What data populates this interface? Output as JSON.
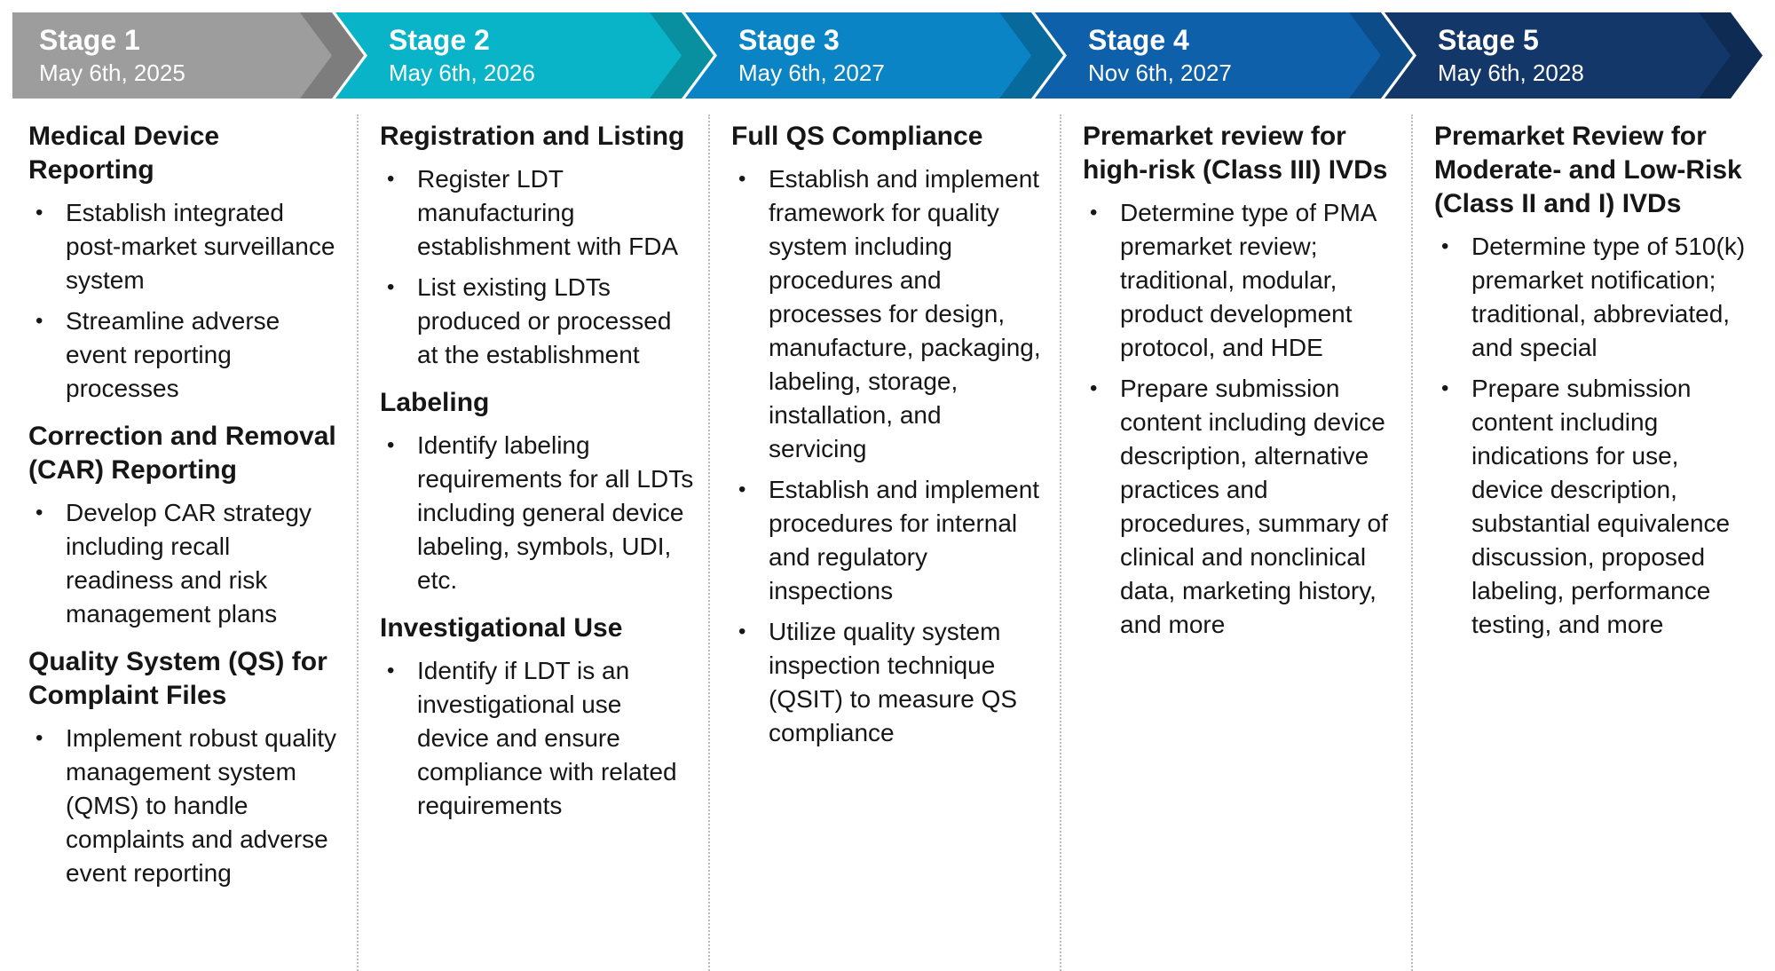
{
  "bullet_char": "•",
  "stages": [
    {
      "label": "Stage 1",
      "date": "May 6th, 2025",
      "color": "#9d9d9d",
      "sections": [
        {
          "heading": "Medical Device Reporting",
          "bullets": [
            "Establish integrated post-market surveillance system",
            "Streamline adverse event reporting processes"
          ]
        },
        {
          "heading": "Correction and Removal (CAR) Reporting",
          "bullets": [
            "Develop CAR strategy including recall readiness and risk management plans"
          ]
        },
        {
          "heading": "Quality System (QS) for Complaint Files",
          "bullets": [
            "Implement robust quality management system (QMS) to handle complaints and adverse event reporting"
          ]
        }
      ]
    },
    {
      "label": "Stage 2",
      "date": "May 6th, 2026",
      "color": "#0ab4c8",
      "sections": [
        {
          "heading": "Registration and Listing",
          "bullets": [
            "Register LDT manufacturing establishment with FDA",
            "List existing LDTs produced or processed at the establishment"
          ]
        },
        {
          "heading": "Labeling",
          "bullets": [
            "Identify labeling requirements for all LDTs including general device labeling, symbols, UDI, etc."
          ]
        },
        {
          "heading": "Investigational Use",
          "bullets": [
            "Identify if LDT is an investigational use device and ensure compliance with related requirements"
          ]
        }
      ]
    },
    {
      "label": "Stage 3",
      "date": "May 6th, 2027",
      "color": "#0b84c5",
      "sections": [
        {
          "heading": "Full QS Compliance",
          "bullets": [
            "Establish and implement framework for quality system including procedures and processes for design, manufacture, packaging, labeling, storage, installation, and servicing",
            "Establish and implement procedures for internal and regulatory inspections",
            "Utilize quality system inspection technique (QSIT) to measure QS compliance"
          ]
        }
      ]
    },
    {
      "label": "Stage 4",
      "date": "Nov 6th, 2027",
      "color": "#0f60aa",
      "sections": [
        {
          "heading": "Premarket review for high-risk (Class III) IVDs",
          "bullets": [
            "Determine type of PMA premarket review; traditional, modular, product development protocol, and HDE",
            "Prepare submission content including device description, alternative practices and procedures, summary of clinical and nonclinical data, marketing history, and more"
          ]
        }
      ]
    },
    {
      "label": "Stage 5",
      "date": "May 6th, 2028",
      "color": "#123768",
      "sections": [
        {
          "heading": "Premarket Review for Moderate- and Low-Risk (Class II and I) IVDs",
          "bullets": [
            "Determine type of 510(k) premarket notification; traditional, abbreviated, and special",
            "Prepare submission content including indications for use, device description, substantial equivalence discussion, proposed labeling, performance testing, and more"
          ]
        }
      ]
    }
  ]
}
